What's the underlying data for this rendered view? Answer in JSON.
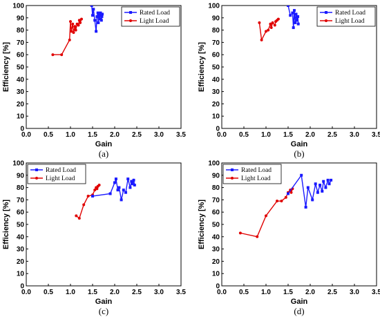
{
  "chart_data": [
    {
      "type": "line",
      "caption": "(a)",
      "xlabel": "Gain",
      "ylabel": "Efficiency [%]",
      "xlim": [
        0.0,
        3.5
      ],
      "ylim": [
        0,
        100
      ],
      "xticks": [
        "0.0",
        "0.5",
        "1.0",
        "1.5",
        "2.0",
        "2.5",
        "3.0",
        "3.5"
      ],
      "yticks": [
        "0",
        "10",
        "20",
        "30",
        "40",
        "50",
        "60",
        "70",
        "80",
        "90",
        "100"
      ],
      "legend_position": "top-right",
      "series": [
        {
          "name": "Rated Load",
          "color": "#1a1aff",
          "marker": "square",
          "points": [
            [
              1.48,
              100
            ],
            [
              1.5,
              92
            ],
            [
              1.52,
              97
            ],
            [
              1.55,
              88
            ],
            [
              1.58,
              79
            ],
            [
              1.6,
              91
            ],
            [
              1.62,
              94
            ],
            [
              1.63,
              86
            ],
            [
              1.65,
              92
            ],
            [
              1.66,
              89
            ],
            [
              1.68,
              94
            ],
            [
              1.7,
              88
            ],
            [
              1.71,
              91
            ],
            [
              1.72,
              93
            ]
          ]
        },
        {
          "name": "Light Load",
          "color": "#e00000",
          "marker": "circle",
          "points": [
            [
              0.6,
              60
            ],
            [
              0.8,
              60
            ],
            [
              0.98,
              72
            ],
            [
              1.0,
              87
            ],
            [
              1.02,
              79
            ],
            [
              1.05,
              85
            ],
            [
              1.07,
              78
            ],
            [
              1.1,
              83
            ],
            [
              1.12,
              80
            ],
            [
              1.15,
              85
            ],
            [
              1.18,
              84
            ],
            [
              1.2,
              88
            ],
            [
              1.22,
              86
            ],
            [
              1.25,
              89
            ]
          ]
        }
      ]
    },
    {
      "type": "line",
      "caption": "(b)",
      "xlabel": "Gain",
      "ylabel": "Efficiency [%]",
      "xlim": [
        0.0,
        3.5
      ],
      "ylim": [
        0,
        100
      ],
      "xticks": [
        "0.0",
        "0.5",
        "1.0",
        "1.5",
        "2.0",
        "2.5",
        "3.0",
        "3.5"
      ],
      "yticks": [
        "0",
        "10",
        "20",
        "30",
        "40",
        "50",
        "60",
        "70",
        "80",
        "90",
        "100"
      ],
      "legend_position": "top-right",
      "series": [
        {
          "name": "Rated Load",
          "color": "#1a1aff",
          "marker": "square",
          "points": [
            [
              1.5,
              100
            ],
            [
              1.55,
              92
            ],
            [
              1.6,
              94
            ],
            [
              1.62,
              82
            ],
            [
              1.64,
              96
            ],
            [
              1.66,
              86
            ],
            [
              1.68,
              93
            ],
            [
              1.7,
              88
            ],
            [
              1.72,
              91
            ],
            [
              1.73,
              85
            ]
          ]
        },
        {
          "name": "Light Load",
          "color": "#e00000",
          "marker": "circle",
          "points": [
            [
              0.85,
              86
            ],
            [
              0.9,
              72
            ],
            [
              1.0,
              79
            ],
            [
              1.05,
              80
            ],
            [
              1.1,
              85
            ],
            [
              1.12,
              82
            ],
            [
              1.15,
              86
            ],
            [
              1.2,
              84
            ],
            [
              1.22,
              87
            ],
            [
              1.25,
              88
            ],
            [
              1.28,
              89
            ]
          ]
        }
      ]
    },
    {
      "type": "line",
      "caption": "(c)",
      "xlabel": "Gain",
      "ylabel": "Efficiency [%]",
      "xlim": [
        0.0,
        3.5
      ],
      "ylim": [
        0,
        100
      ],
      "xticks": [
        "0.0",
        "0.5",
        "1.0",
        "1.5",
        "2.0",
        "2.5",
        "3.0",
        "3.5"
      ],
      "yticks": [
        "0",
        "10",
        "20",
        "30",
        "40",
        "50",
        "60",
        "70",
        "80",
        "90",
        "100"
      ],
      "legend_position": "top-left",
      "series": [
        {
          "name": "Rated Load",
          "color": "#1a1aff",
          "marker": "square",
          "points": [
            [
              1.5,
              73
            ],
            [
              1.9,
              75
            ],
            [
              2.0,
              84
            ],
            [
              2.03,
              87
            ],
            [
              2.07,
              78
            ],
            [
              2.1,
              80
            ],
            [
              2.15,
              70
            ],
            [
              2.2,
              78
            ],
            [
              2.25,
              76
            ],
            [
              2.3,
              87
            ],
            [
              2.35,
              80
            ],
            [
              2.38,
              85
            ],
            [
              2.4,
              83
            ],
            [
              2.43,
              86
            ],
            [
              2.45,
              82
            ]
          ]
        },
        {
          "name": "Light Load",
          "color": "#e00000",
          "marker": "circle",
          "points": [
            [
              1.13,
              57
            ],
            [
              1.2,
              55
            ],
            [
              1.3,
              66
            ],
            [
              1.4,
              73
            ],
            [
              1.5,
              74
            ],
            [
              1.55,
              78
            ],
            [
              1.58,
              80
            ],
            [
              1.6,
              79
            ],
            [
              1.62,
              81
            ],
            [
              1.65,
              82
            ]
          ]
        }
      ]
    },
    {
      "type": "line",
      "caption": "(d)",
      "xlabel": "Gain",
      "ylabel": "Efficiency [%]",
      "xlim": [
        0.0,
        3.5
      ],
      "ylim": [
        0,
        100
      ],
      "xticks": [
        "0.0",
        "0.5",
        "1.0",
        "1.5",
        "2.0",
        "2.5",
        "3.0",
        "3.5"
      ],
      "yticks": [
        "0",
        "10",
        "20",
        "30",
        "40",
        "50",
        "60",
        "70",
        "80",
        "90",
        "100"
      ],
      "legend_position": "top-left",
      "series": [
        {
          "name": "Rated Load",
          "color": "#1a1aff",
          "marker": "square",
          "points": [
            [
              1.5,
              75
            ],
            [
              1.8,
              90
            ],
            [
              1.9,
              64
            ],
            [
              1.95,
              80
            ],
            [
              2.05,
              70
            ],
            [
              2.12,
              83
            ],
            [
              2.17,
              76
            ],
            [
              2.22,
              82
            ],
            [
              2.27,
              77
            ],
            [
              2.3,
              85
            ],
            [
              2.35,
              80
            ],
            [
              2.4,
              86
            ],
            [
              2.43,
              83
            ],
            [
              2.47,
              86
            ]
          ]
        },
        {
          "name": "Light Load",
          "color": "#e00000",
          "marker": "circle",
          "points": [
            [
              0.42,
              43
            ],
            [
              0.8,
              40
            ],
            [
              1.0,
              57
            ],
            [
              1.25,
              69
            ],
            [
              1.35,
              69
            ],
            [
              1.45,
              72
            ],
            [
              1.5,
              76
            ],
            [
              1.55,
              78
            ],
            [
              1.57,
              76
            ],
            [
              1.6,
              79
            ]
          ]
        }
      ]
    }
  ]
}
